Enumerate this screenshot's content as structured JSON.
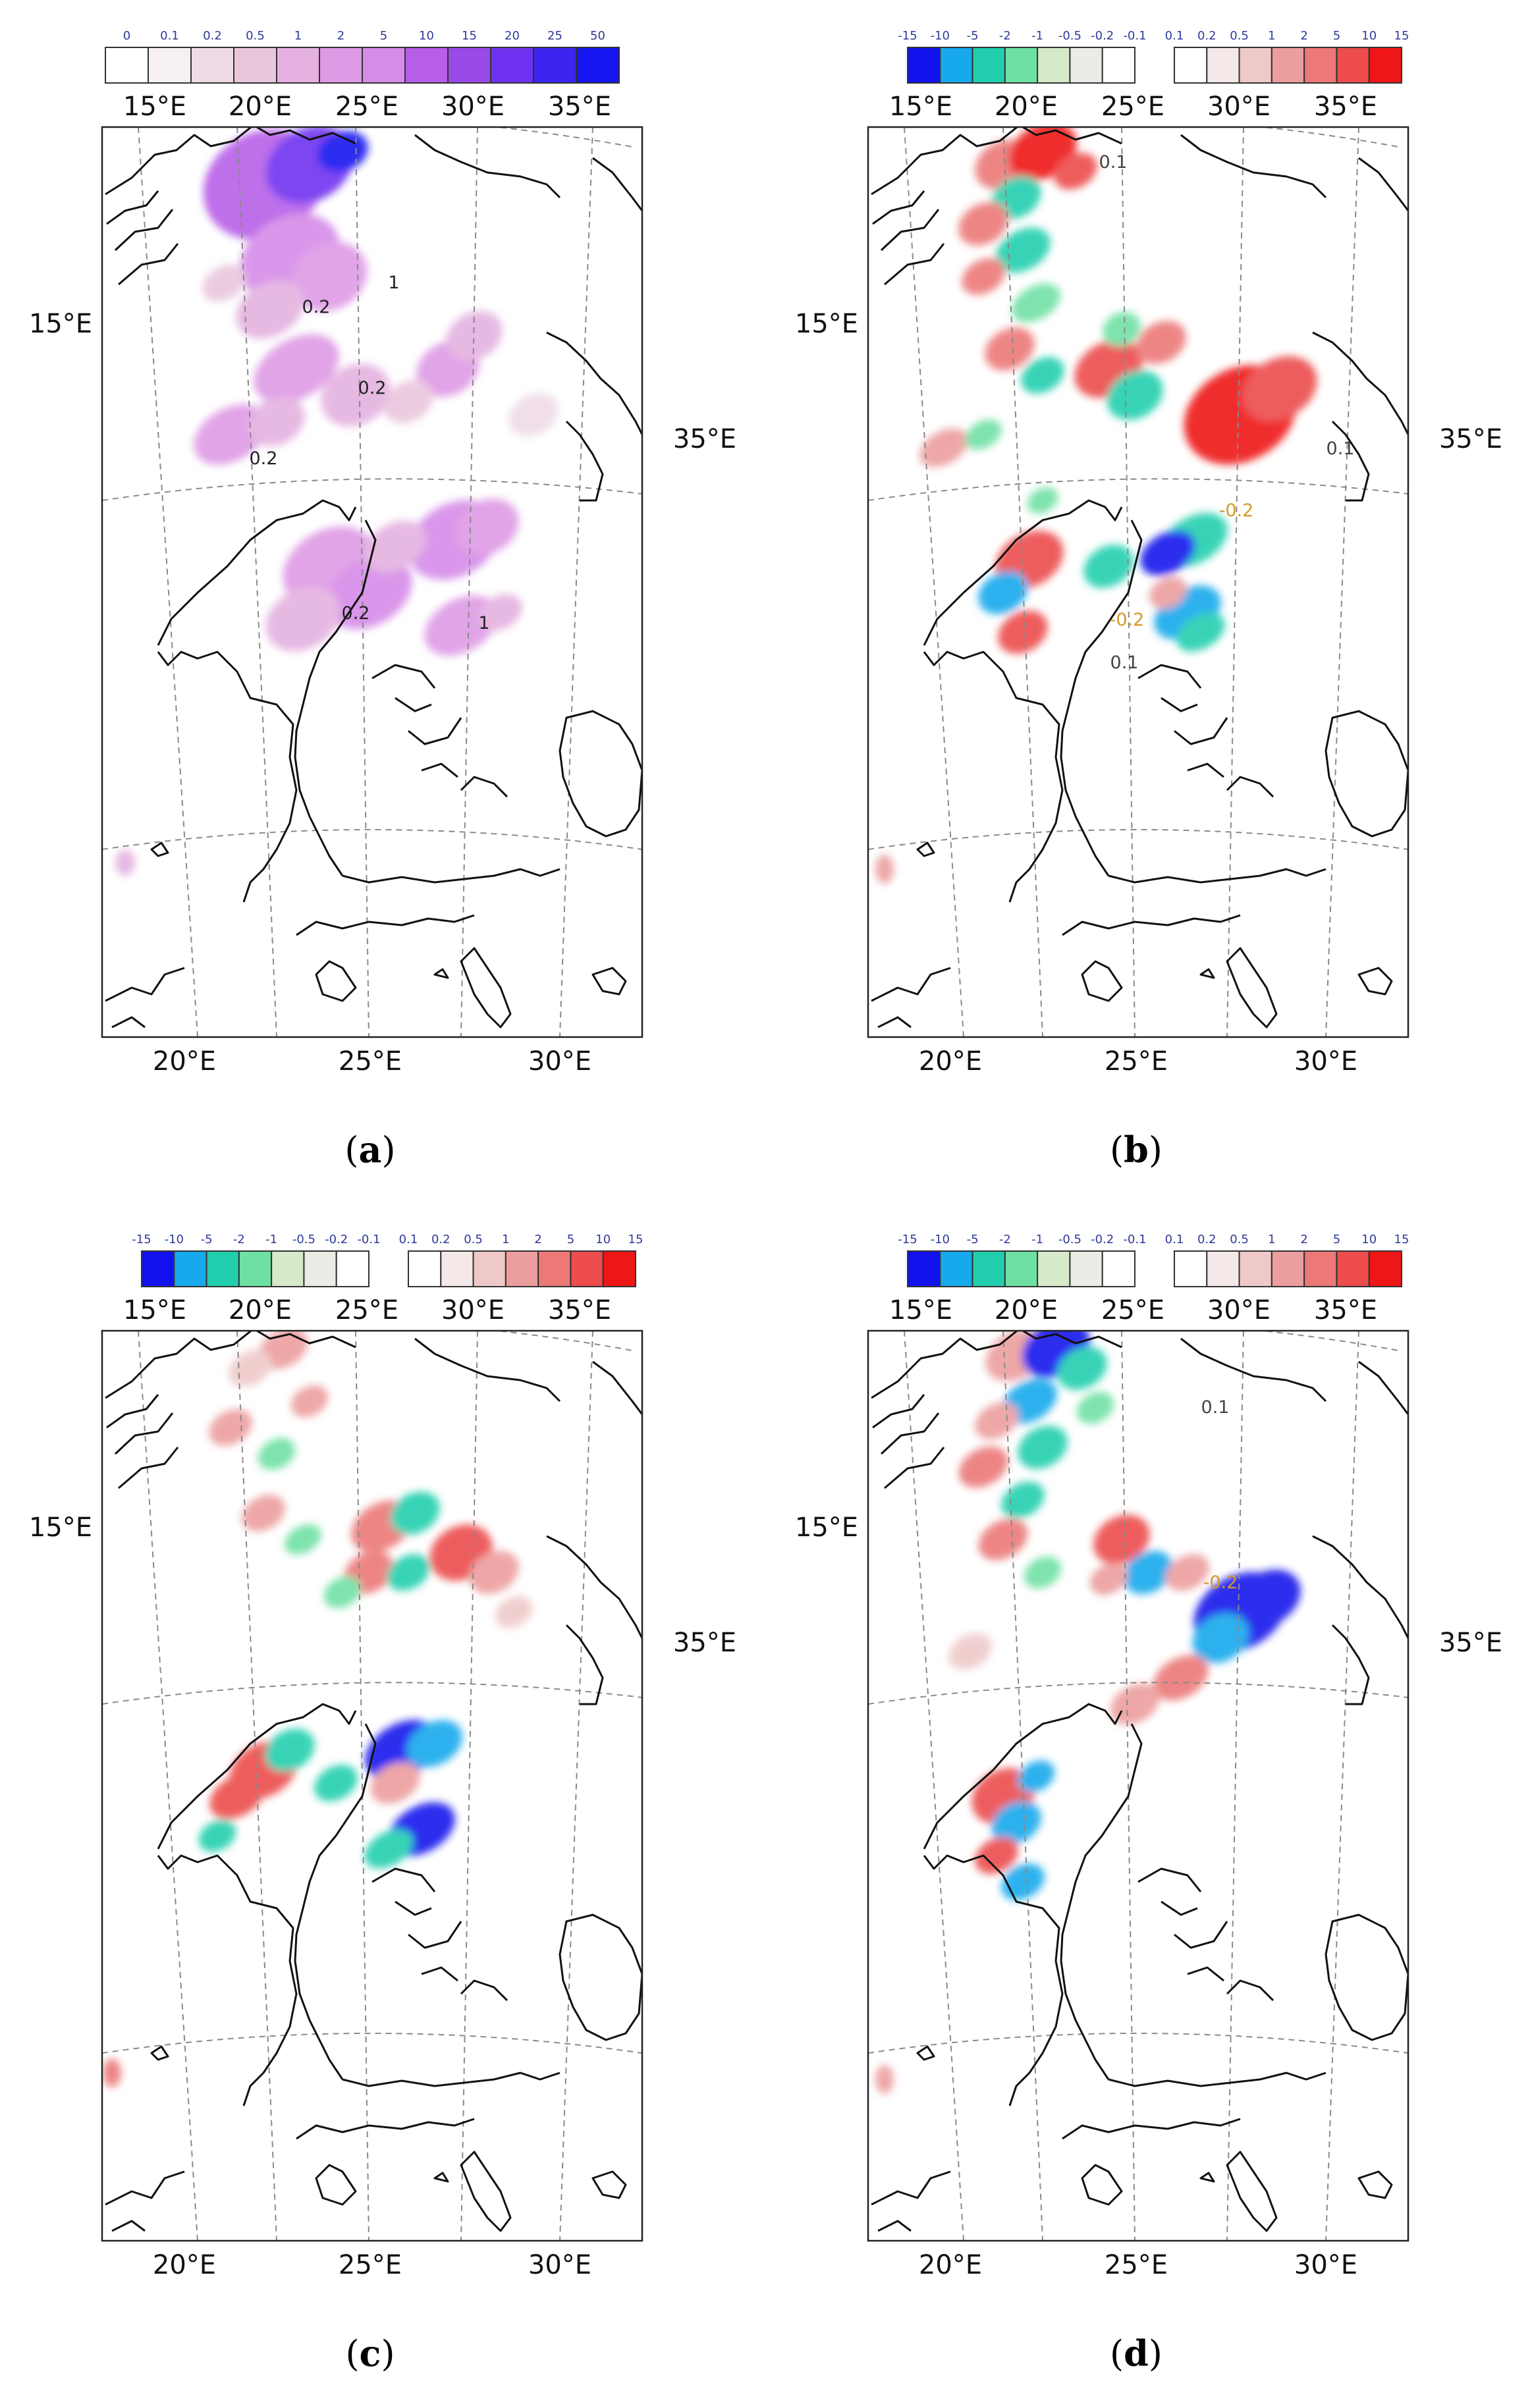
{
  "panels": [
    {
      "id": "a",
      "caption_letter": "a",
      "caption": {
        "open": "(",
        "close": ")"
      },
      "map_type": "precipitation",
      "colorbars": [
        {
          "ticks": [
            "0",
            "0.1",
            "0.2",
            "0.5",
            "1",
            "2",
            "5",
            "10",
            "15",
            "20",
            "25",
            "50"
          ],
          "colors": [
            "#ffffff",
            "#f6f0f3",
            "#efdbe6",
            "#e9c6dc",
            "#e4b1e0",
            "#de9ae5",
            "#d68be8",
            "#b75ee8",
            "#9a4ae8",
            "#6f32f0",
            "#3c25ee",
            "#1616f0"
          ]
        }
      ],
      "lon_top": [
        "15°E",
        "20°E",
        "25°E",
        "30°E",
        "35°E"
      ],
      "lon_bottom": [
        "20°E",
        "25°E",
        "30°E"
      ],
      "left_label": "15°E",
      "right_label": "35°E",
      "contour_labels": [
        {
          "text": "1",
          "color": "#222222"
        },
        {
          "text": "0.2",
          "color": "#222222"
        },
        {
          "text": "0.2",
          "color": "#222222"
        },
        {
          "text": "0.2",
          "color": "#222222"
        },
        {
          "text": "0.2",
          "color": "#222222"
        },
        {
          "text": "1",
          "color": "#222222"
        }
      ]
    },
    {
      "id": "b",
      "caption_letter": "b",
      "caption": {
        "open": "(",
        "close": ")"
      },
      "map_type": "difference",
      "colorbars": [
        {
          "ticks": [
            "-15",
            "-10",
            "-5",
            "-2",
            "-1",
            "-0.5",
            "-0.2",
            "-0.1"
          ],
          "colors": [
            "#1212ec",
            "#17a9ec",
            "#21cfae",
            "#6fe0a4",
            "#d6e9c8",
            "#ecece6",
            "#ffffff"
          ]
        },
        {
          "ticks": [
            "0.1",
            "0.2",
            "0.5",
            "1",
            "2",
            "5",
            "10",
            "15"
          ],
          "colors": [
            "#ffffff",
            "#f4e8e8",
            "#efc9c9",
            "#ec9d9d",
            "#ec7878",
            "#ec4c4c",
            "#ee1616"
          ]
        }
      ],
      "lon_top": [
        "15°E",
        "20°E",
        "25°E",
        "30°E",
        "35°E"
      ],
      "lon_bottom": [
        "20°E",
        "25°E",
        "30°E"
      ],
      "left_label": "15°E",
      "right_label": "35°E",
      "contour_labels": [
        {
          "text": "0.1",
          "color": "#444444"
        },
        {
          "text": "0.1",
          "color": "#444444"
        },
        {
          "text": "-0.2",
          "color": "#d39a2a"
        },
        {
          "text": "0.1",
          "color": "#444444"
        },
        {
          "text": "-0.2",
          "color": "#d39a2a"
        }
      ]
    },
    {
      "id": "c",
      "caption_letter": "c",
      "caption": {
        "open": "(",
        "close": ")"
      },
      "map_type": "difference",
      "colorbars": [
        {
          "ticks": [
            "-15",
            "-10",
            "-5",
            "-2",
            "-1",
            "-0.5",
            "-0.2",
            "-0.1"
          ],
          "colors": [
            "#1212ec",
            "#17a9ec",
            "#21cfae",
            "#6fe0a4",
            "#d6e9c8",
            "#ecece6",
            "#ffffff"
          ]
        },
        {
          "ticks": [
            "0.1",
            "0.2",
            "0.5",
            "1",
            "2",
            "5",
            "10",
            "15"
          ],
          "colors": [
            "#ffffff",
            "#f4e8e8",
            "#efc9c9",
            "#ec9d9d",
            "#ec7878",
            "#ec4c4c",
            "#ee1616"
          ]
        }
      ],
      "lon_top": [
        "15°E",
        "20°E",
        "25°E",
        "30°E",
        "35°E"
      ],
      "lon_bottom": [
        "20°E",
        "25°E",
        "30°E"
      ],
      "left_label": "15°E",
      "right_label": "35°E",
      "contour_labels": []
    },
    {
      "id": "d",
      "caption_letter": "d",
      "caption": {
        "open": "(",
        "close": ")"
      },
      "map_type": "difference",
      "colorbars": [
        {
          "ticks": [
            "-15",
            "-10",
            "-5",
            "-2",
            "-1",
            "-0.5",
            "-0.2",
            "-0.1"
          ],
          "colors": [
            "#1212ec",
            "#17a9ec",
            "#21cfae",
            "#6fe0a4",
            "#d6e9c8",
            "#ecece6",
            "#ffffff"
          ]
        },
        {
          "ticks": [
            "0.1",
            "0.2",
            "0.5",
            "1",
            "2",
            "5",
            "10",
            "15"
          ],
          "colors": [
            "#ffffff",
            "#f4e8e8",
            "#efc9c9",
            "#ec9d9d",
            "#ec7878",
            "#ec4c4c",
            "#ee1616"
          ]
        }
      ],
      "lon_top": [
        "15°E",
        "20°E",
        "25°E",
        "30°E",
        "35°E"
      ],
      "lon_bottom": [
        "20°E",
        "25°E",
        "30°E"
      ],
      "left_label": "15°E",
      "right_label": "35°E",
      "contour_labels": [
        {
          "text": "0.1",
          "color": "#444444"
        },
        {
          "text": "-0.2",
          "color": "#d39a2a"
        }
      ]
    }
  ]
}
